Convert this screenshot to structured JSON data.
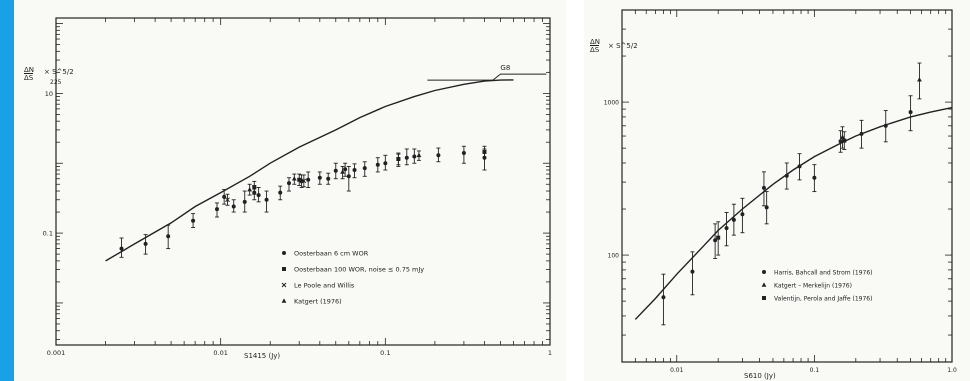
{
  "colors": {
    "accent_stripe": "#1aa0e6",
    "ink": "#222222",
    "paper": "#f9f9f6"
  },
  "chart_data": [
    {
      "type": "scatter",
      "xscale": "log",
      "yscale": "log",
      "xlim": [
        0.001,
        1
      ],
      "ylim": [
        0.0025,
        120
      ],
      "xlabel": "S1415 (Jy)",
      "ylabel": {
        "numerator": "ΔN",
        "denominator": "ΔS",
        "factor": "× S^5/2",
        "factor_denominator": "225"
      },
      "x_ticks": [
        {
          "value": 0.001,
          "label": "0.001"
        },
        {
          "value": 0.01,
          "label": "0.01"
        },
        {
          "value": 0.1,
          "label": "0.1"
        },
        {
          "value": 1,
          "label": "1"
        }
      ],
      "y_ticks": [
        {
          "value": 10,
          "label": "10"
        },
        {
          "value": 1,
          "label": ""
        },
        {
          "value": 0.1,
          "label": "0.1"
        }
      ],
      "annotation": "G8",
      "legend": [
        {
          "marker": "dot",
          "label": "Oosterbaan 6 cm WOR"
        },
        {
          "marker": "square",
          "label": "Oosterbaan 100 WOR, noise ≤ 0.75 mJy"
        },
        {
          "marker": "cross",
          "label": "Le Poole and Willis"
        },
        {
          "marker": "triangle",
          "label": "Katgert (1976)"
        }
      ],
      "curve": [
        [
          0.002,
          0.04
        ],
        [
          0.003,
          0.07
        ],
        [
          0.005,
          0.14
        ],
        [
          0.007,
          0.24
        ],
        [
          0.01,
          0.38
        ],
        [
          0.015,
          0.65
        ],
        [
          0.02,
          1.0
        ],
        [
          0.03,
          1.7
        ],
        [
          0.05,
          3.0
        ],
        [
          0.07,
          4.5
        ],
        [
          0.1,
          6.5
        ],
        [
          0.15,
          9.0
        ],
        [
          0.2,
          11.0
        ],
        [
          0.3,
          13.5
        ],
        [
          0.4,
          15.0
        ],
        [
          0.5,
          15.5
        ],
        [
          0.6,
          15.6
        ]
      ],
      "series": [
        {
          "name": "Oosterbaan 6 cm WOR",
          "points": [
            {
              "x": 0.0025,
              "y": 0.06,
              "lo": 0.045,
              "hi": 0.085
            },
            {
              "x": 0.0035,
              "y": 0.07,
              "lo": 0.05,
              "hi": 0.095
            },
            {
              "x": 0.0048,
              "y": 0.09,
              "lo": 0.06,
              "hi": 0.13
            },
            {
              "x": 0.0068,
              "y": 0.15,
              "lo": 0.12,
              "hi": 0.19
            },
            {
              "x": 0.0095,
              "y": 0.22,
              "lo": 0.17,
              "hi": 0.27
            },
            {
              "x": 0.0105,
              "y": 0.33,
              "lo": 0.26,
              "hi": 0.42
            },
            {
              "x": 0.012,
              "y": 0.24,
              "lo": 0.2,
              "hi": 0.3
            },
            {
              "x": 0.014,
              "y": 0.28,
              "lo": 0.2,
              "hi": 0.4
            },
            {
              "x": 0.016,
              "y": 0.38,
              "lo": 0.3,
              "hi": 0.48
            },
            {
              "x": 0.017,
              "y": 0.35,
              "lo": 0.28,
              "hi": 0.45
            },
            {
              "x": 0.019,
              "y": 0.3,
              "lo": 0.2,
              "hi": 0.4
            },
            {
              "x": 0.023,
              "y": 0.38,
              "lo": 0.3,
              "hi": 0.47
            },
            {
              "x": 0.026,
              "y": 0.52,
              "lo": 0.4,
              "hi": 0.62
            },
            {
              "x": 0.031,
              "y": 0.55,
              "lo": 0.45,
              "hi": 0.68
            },
            {
              "x": 0.034,
              "y": 0.58,
              "lo": 0.45,
              "hi": 0.75
            },
            {
              "x": 0.04,
              "y": 0.62,
              "lo": 0.5,
              "hi": 0.75
            },
            {
              "x": 0.045,
              "y": 0.6,
              "lo": 0.5,
              "hi": 0.72
            },
            {
              "x": 0.05,
              "y": 0.78,
              "lo": 0.6,
              "hi": 1.0
            },
            {
              "x": 0.057,
              "y": 0.82,
              "lo": 0.65,
              "hi": 1.0
            },
            {
              "x": 0.06,
              "y": 0.65,
              "lo": 0.4,
              "hi": 0.9
            },
            {
              "x": 0.065,
              "y": 0.8,
              "lo": 0.62,
              "hi": 0.98
            },
            {
              "x": 0.075,
              "y": 0.85,
              "lo": 0.65,
              "hi": 1.05
            },
            {
              "x": 0.09,
              "y": 0.95,
              "lo": 0.75,
              "hi": 1.2
            },
            {
              "x": 0.1,
              "y": 1.0,
              "lo": 0.8,
              "hi": 1.3
            },
            {
              "x": 0.12,
              "y": 1.15,
              "lo": 0.9,
              "hi": 1.4
            },
            {
              "x": 0.135,
              "y": 1.2,
              "lo": 0.95,
              "hi": 1.6
            },
            {
              "x": 0.15,
              "y": 1.25,
              "lo": 1.0,
              "hi": 1.6
            },
            {
              "x": 0.21,
              "y": 1.3,
              "lo": 1.05,
              "hi": 1.65
            },
            {
              "x": 0.3,
              "y": 1.4,
              "lo": 1.0,
              "hi": 1.75
            },
            {
              "x": 0.4,
              "y": 1.2,
              "lo": 0.8,
              "hi": 1.6
            }
          ]
        },
        {
          "name": "Oosterbaan 100 WOR, noise ≤ 0.75 mJy",
          "points": [
            {
              "x": 0.016,
              "y": 0.45,
              "lo": 0.36,
              "hi": 0.55
            },
            {
              "x": 0.03,
              "y": 0.58,
              "lo": 0.48,
              "hi": 0.7
            },
            {
              "x": 0.12,
              "y": 1.15,
              "lo": 0.95,
              "hi": 1.35
            },
            {
              "x": 0.4,
              "y": 1.45,
              "lo": 1.2,
              "hi": 1.75
            }
          ]
        },
        {
          "name": "Le Poole and Willis",
          "points": [
            {
              "x": 0.011,
              "y": 0.3,
              "lo": 0.25,
              "hi": 0.36
            },
            {
              "x": 0.032,
              "y": 0.56,
              "lo": 0.46,
              "hi": 0.68
            }
          ]
        },
        {
          "name": "Katgert (1976)",
          "points": [
            {
              "x": 0.015,
              "y": 0.42,
              "lo": 0.35,
              "hi": 0.5
            },
            {
              "x": 0.028,
              "y": 0.6,
              "lo": 0.5,
              "hi": 0.7
            },
            {
              "x": 0.055,
              "y": 0.75,
              "lo": 0.6,
              "hi": 0.9
            },
            {
              "x": 0.16,
              "y": 1.3,
              "lo": 1.1,
              "hi": 1.5
            }
          ]
        }
      ]
    },
    {
      "type": "scatter",
      "xscale": "log",
      "yscale": "log",
      "xlim": [
        0.004,
        1.0
      ],
      "ylim": [
        20,
        4000
      ],
      "xlabel": "S610 (Jy)",
      "ylabel": {
        "numerator": "ΔN",
        "denominator": "ΔS",
        "factor": "× S^5/2"
      },
      "x_ticks": [
        {
          "value": 0.01,
          "label": "0.01"
        },
        {
          "value": 0.1,
          "label": "0.1"
        },
        {
          "value": 1.0,
          "label": "1.0"
        }
      ],
      "y_ticks": [
        {
          "value": 1000,
          "label": "1000"
        },
        {
          "value": 100,
          "label": "100"
        }
      ],
      "legend": [
        {
          "marker": "dot",
          "label": "Harris, Bahcall and Strom (1976)"
        },
        {
          "marker": "triangle",
          "label": "Katgert – Merkelijn (1976)"
        },
        {
          "marker": "square",
          "label": "Valentijn, Perola and Jaffe (1976)"
        }
      ],
      "curve": [
        [
          0.005,
          38
        ],
        [
          0.007,
          52
        ],
        [
          0.01,
          75
        ],
        [
          0.015,
          110
        ],
        [
          0.02,
          145
        ],
        [
          0.03,
          200
        ],
        [
          0.05,
          290
        ],
        [
          0.07,
          360
        ],
        [
          0.1,
          440
        ],
        [
          0.15,
          530
        ],
        [
          0.2,
          600
        ],
        [
          0.3,
          690
        ],
        [
          0.5,
          800
        ],
        [
          0.7,
          860
        ],
        [
          1.0,
          920
        ]
      ],
      "series": [
        {
          "name": "Harris, Bahcall and Strom (1976)",
          "points": [
            {
              "x": 0.008,
              "y": 53,
              "lo": 35,
              "hi": 75
            },
            {
              "x": 0.013,
              "y": 78,
              "lo": 55,
              "hi": 105
            },
            {
              "x": 0.019,
              "y": 125,
              "lo": 95,
              "hi": 160
            },
            {
              "x": 0.023,
              "y": 150,
              "lo": 115,
              "hi": 190
            },
            {
              "x": 0.026,
              "y": 170,
              "lo": 135,
              "hi": 215
            },
            {
              "x": 0.03,
              "y": 185,
              "lo": 140,
              "hi": 235
            },
            {
              "x": 0.043,
              "y": 275,
              "lo": 210,
              "hi": 350
            },
            {
              "x": 0.045,
              "y": 205,
              "lo": 160,
              "hi": 260
            },
            {
              "x": 0.063,
              "y": 330,
              "lo": 270,
              "hi": 400
            },
            {
              "x": 0.078,
              "y": 380,
              "lo": 310,
              "hi": 460
            },
            {
              "x": 0.1,
              "y": 320,
              "lo": 260,
              "hi": 390
            },
            {
              "x": 0.155,
              "y": 555,
              "lo": 470,
              "hi": 650
            },
            {
              "x": 0.22,
              "y": 620,
              "lo": 500,
              "hi": 760
            },
            {
              "x": 0.33,
              "y": 700,
              "lo": 550,
              "hi": 880
            },
            {
              "x": 0.5,
              "y": 860,
              "lo": 650,
              "hi": 1100
            }
          ]
        },
        {
          "name": "Katgert – Merkelijn (1976)",
          "points": [
            {
              "x": 0.16,
              "y": 590,
              "lo": 500,
              "hi": 690
            },
            {
              "x": 0.58,
              "y": 1400,
              "lo": 1050,
              "hi": 1800
            }
          ]
        },
        {
          "name": "Valentijn, Perola and Jaffe (1976)",
          "points": [
            {
              "x": 0.02,
              "y": 130,
              "lo": 100,
              "hi": 165
            },
            {
              "x": 0.165,
              "y": 560,
              "lo": 490,
              "hi": 640
            }
          ]
        }
      ]
    }
  ]
}
